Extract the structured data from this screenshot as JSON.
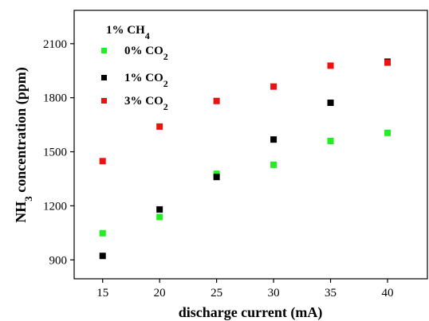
{
  "chart_data": {
    "type": "scatter",
    "title": "",
    "xlabel": "discharge current (mA)",
    "ylabel": {
      "prefix": "NH",
      "sub": "3",
      "suffix": " concentration (ppm)"
    },
    "x": [
      15,
      20,
      25,
      30,
      35,
      40
    ],
    "xlim": [
      12.5,
      43.5
    ],
    "ylim": [
      795,
      2285
    ],
    "xticks": [
      "15",
      "20",
      "25",
      "30",
      "35",
      "40"
    ],
    "xtick_values": [
      15,
      20,
      25,
      30,
      35,
      40
    ],
    "yticks": [
      "900",
      "1200",
      "1500",
      "1800",
      "2100"
    ],
    "ytick_values": [
      900,
      1200,
      1500,
      1800,
      2100
    ],
    "grid": false,
    "legend_position": "top-left",
    "legend_header": {
      "prefix": "1% CH",
      "sub": "4",
      "suffix": ""
    },
    "series": [
      {
        "name": "0% CO2",
        "label_prefix": "0% CO",
        "label_sub": "2",
        "color": "#22ee22",
        "values": [
          1048,
          1138,
          1378,
          1428,
          1560,
          1605
        ]
      },
      {
        "name": "1% CO2",
        "label_prefix": "1% CO",
        "label_sub": "2",
        "color": "#000000",
        "values": [
          922,
          1180,
          1360,
          1568,
          1772,
          2000
        ]
      },
      {
        "name": "3% CO2",
        "label_prefix": "3% CO",
        "label_sub": "2",
        "color": "#ee1111",
        "values": [
          1448,
          1640,
          1782,
          1862,
          1978,
          1995
        ]
      }
    ]
  }
}
